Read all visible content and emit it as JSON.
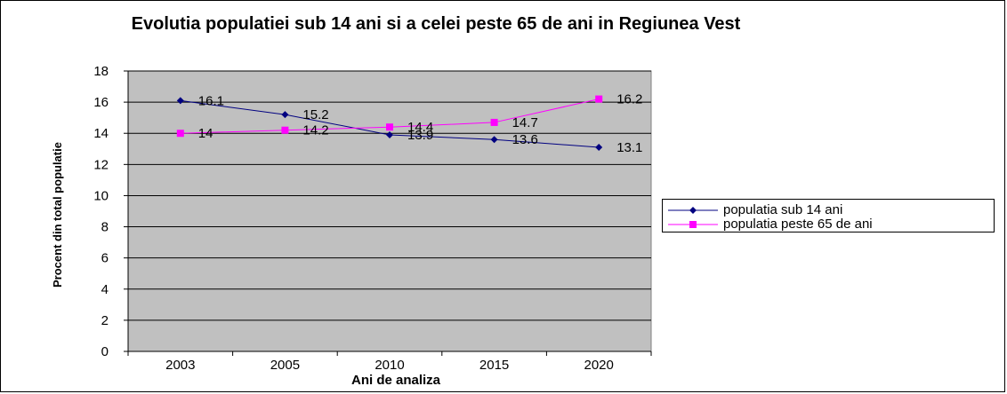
{
  "chart_data": {
    "type": "line",
    "title": "Evolutia populatiei sub 14 ani si a celei peste 65 de ani in Regiunea Vest",
    "xlabel": "Ani de analiza",
    "ylabel": "Procent din total populatie",
    "categories": [
      "2003",
      "2005",
      "2010",
      "2015",
      "2020"
    ],
    "ylim": [
      0,
      18
    ],
    "yticks": [
      "0",
      "2",
      "4",
      "6",
      "8",
      "10",
      "12",
      "14",
      "16",
      "18"
    ],
    "grid": true,
    "legend_position": "right",
    "plot_background": "#c0c0c0",
    "series": [
      {
        "name": "populatia sub 14 ani",
        "values": [
          16.1,
          15.2,
          13.9,
          13.6,
          13.1
        ],
        "labels": [
          "16.1",
          "15.2",
          "13.9",
          "13.6",
          "13.1"
        ],
        "color": "#000080",
        "marker": "diamond"
      },
      {
        "name": "populatia peste 65 de ani",
        "values": [
          14,
          14.2,
          14.4,
          14.7,
          16.2
        ],
        "labels": [
          "14",
          "14.2",
          "14.4",
          "14.7",
          "16.2"
        ],
        "color": "#ff00ff",
        "marker": "square"
      }
    ]
  }
}
